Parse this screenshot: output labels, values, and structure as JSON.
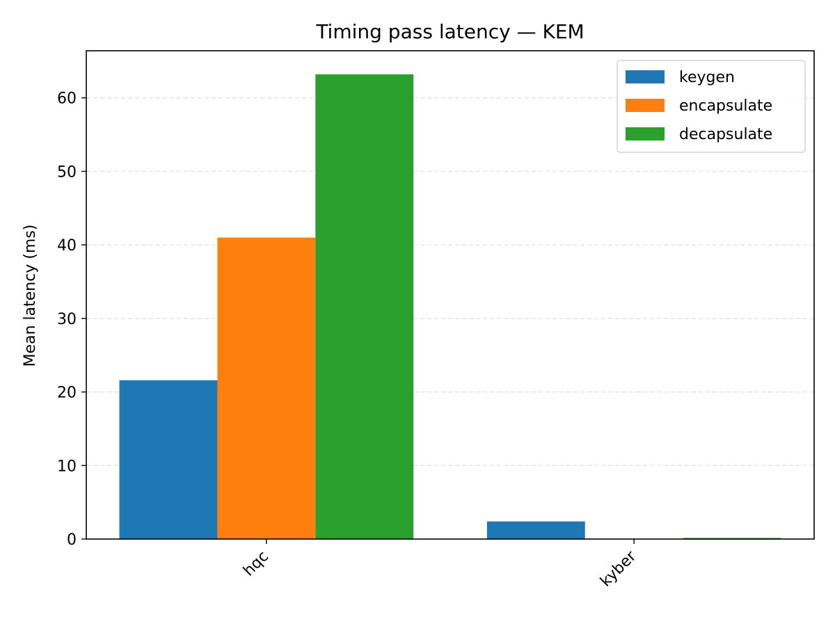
{
  "chart_data": {
    "type": "bar",
    "title": "Timing pass latency — KEM",
    "xlabel": "",
    "ylabel": "Mean latency (ms)",
    "categories": [
      "hqc",
      "kyber"
    ],
    "series": [
      {
        "name": "keygen",
        "values": [
          21.6,
          2.4
        ],
        "color": "#1f77b4"
      },
      {
        "name": "encapsulate",
        "values": [
          41.0,
          0.05
        ],
        "color": "#ff7f0e"
      },
      {
        "name": "decapsulate",
        "values": [
          63.2,
          0.15
        ],
        "color": "#2ca02c"
      }
    ],
    "ylim": [
      0,
      66.4
    ],
    "yticks": [
      0,
      10,
      20,
      30,
      40,
      50,
      60
    ],
    "grid": "y-dashed",
    "legend_position": "top-right"
  }
}
